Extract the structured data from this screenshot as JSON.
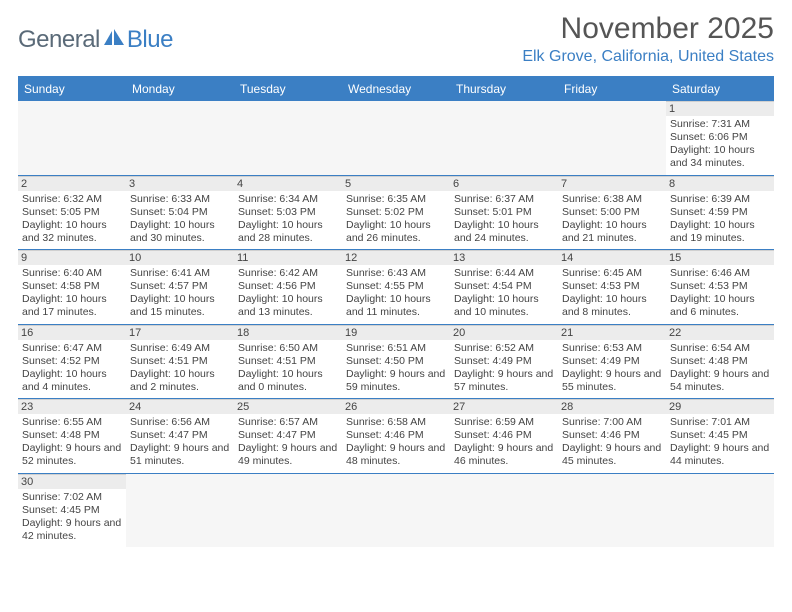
{
  "logo": {
    "text1": "General",
    "text2": "Blue"
  },
  "title": "November 2025",
  "location": "Elk Grove, California, United States",
  "colors": {
    "accent": "#3b7fc4",
    "logo_gray": "#5a6a78",
    "header_text": "#555555",
    "cell_text": "#444444",
    "empty_bg": "#f6f6f6",
    "daynum_bg": "#ececec",
    "divider": "#d0d0d0",
    "white": "#ffffff"
  },
  "weekdays": [
    "Sunday",
    "Monday",
    "Tuesday",
    "Wednesday",
    "Thursday",
    "Friday",
    "Saturday"
  ],
  "weeks": [
    [
      null,
      null,
      null,
      null,
      null,
      null,
      {
        "n": "1",
        "sr": "7:31 AM",
        "ss": "6:06 PM",
        "dl": "10 hours and 34 minutes."
      }
    ],
    [
      {
        "n": "2",
        "sr": "6:32 AM",
        "ss": "5:05 PM",
        "dl": "10 hours and 32 minutes."
      },
      {
        "n": "3",
        "sr": "6:33 AM",
        "ss": "5:04 PM",
        "dl": "10 hours and 30 minutes."
      },
      {
        "n": "4",
        "sr": "6:34 AM",
        "ss": "5:03 PM",
        "dl": "10 hours and 28 minutes."
      },
      {
        "n": "5",
        "sr": "6:35 AM",
        "ss": "5:02 PM",
        "dl": "10 hours and 26 minutes."
      },
      {
        "n": "6",
        "sr": "6:37 AM",
        "ss": "5:01 PM",
        "dl": "10 hours and 24 minutes."
      },
      {
        "n": "7",
        "sr": "6:38 AM",
        "ss": "5:00 PM",
        "dl": "10 hours and 21 minutes."
      },
      {
        "n": "8",
        "sr": "6:39 AM",
        "ss": "4:59 PM",
        "dl": "10 hours and 19 minutes."
      }
    ],
    [
      {
        "n": "9",
        "sr": "6:40 AM",
        "ss": "4:58 PM",
        "dl": "10 hours and 17 minutes."
      },
      {
        "n": "10",
        "sr": "6:41 AM",
        "ss": "4:57 PM",
        "dl": "10 hours and 15 minutes."
      },
      {
        "n": "11",
        "sr": "6:42 AM",
        "ss": "4:56 PM",
        "dl": "10 hours and 13 minutes."
      },
      {
        "n": "12",
        "sr": "6:43 AM",
        "ss": "4:55 PM",
        "dl": "10 hours and 11 minutes."
      },
      {
        "n": "13",
        "sr": "6:44 AM",
        "ss": "4:54 PM",
        "dl": "10 hours and 10 minutes."
      },
      {
        "n": "14",
        "sr": "6:45 AM",
        "ss": "4:53 PM",
        "dl": "10 hours and 8 minutes."
      },
      {
        "n": "15",
        "sr": "6:46 AM",
        "ss": "4:53 PM",
        "dl": "10 hours and 6 minutes."
      }
    ],
    [
      {
        "n": "16",
        "sr": "6:47 AM",
        "ss": "4:52 PM",
        "dl": "10 hours and 4 minutes."
      },
      {
        "n": "17",
        "sr": "6:49 AM",
        "ss": "4:51 PM",
        "dl": "10 hours and 2 minutes."
      },
      {
        "n": "18",
        "sr": "6:50 AM",
        "ss": "4:51 PM",
        "dl": "10 hours and 0 minutes."
      },
      {
        "n": "19",
        "sr": "6:51 AM",
        "ss": "4:50 PM",
        "dl": "9 hours and 59 minutes."
      },
      {
        "n": "20",
        "sr": "6:52 AM",
        "ss": "4:49 PM",
        "dl": "9 hours and 57 minutes."
      },
      {
        "n": "21",
        "sr": "6:53 AM",
        "ss": "4:49 PM",
        "dl": "9 hours and 55 minutes."
      },
      {
        "n": "22",
        "sr": "6:54 AM",
        "ss": "4:48 PM",
        "dl": "9 hours and 54 minutes."
      }
    ],
    [
      {
        "n": "23",
        "sr": "6:55 AM",
        "ss": "4:48 PM",
        "dl": "9 hours and 52 minutes."
      },
      {
        "n": "24",
        "sr": "6:56 AM",
        "ss": "4:47 PM",
        "dl": "9 hours and 51 minutes."
      },
      {
        "n": "25",
        "sr": "6:57 AM",
        "ss": "4:47 PM",
        "dl": "9 hours and 49 minutes."
      },
      {
        "n": "26",
        "sr": "6:58 AM",
        "ss": "4:46 PM",
        "dl": "9 hours and 48 minutes."
      },
      {
        "n": "27",
        "sr": "6:59 AM",
        "ss": "4:46 PM",
        "dl": "9 hours and 46 minutes."
      },
      {
        "n": "28",
        "sr": "7:00 AM",
        "ss": "4:46 PM",
        "dl": "9 hours and 45 minutes."
      },
      {
        "n": "29",
        "sr": "7:01 AM",
        "ss": "4:45 PM",
        "dl": "9 hours and 44 minutes."
      }
    ],
    [
      {
        "n": "30",
        "sr": "7:02 AM",
        "ss": "4:45 PM",
        "dl": "9 hours and 42 minutes."
      },
      null,
      null,
      null,
      null,
      null,
      null
    ]
  ],
  "labels": {
    "sunrise": "Sunrise: ",
    "sunset": "Sunset: ",
    "daylight": "Daylight: "
  }
}
